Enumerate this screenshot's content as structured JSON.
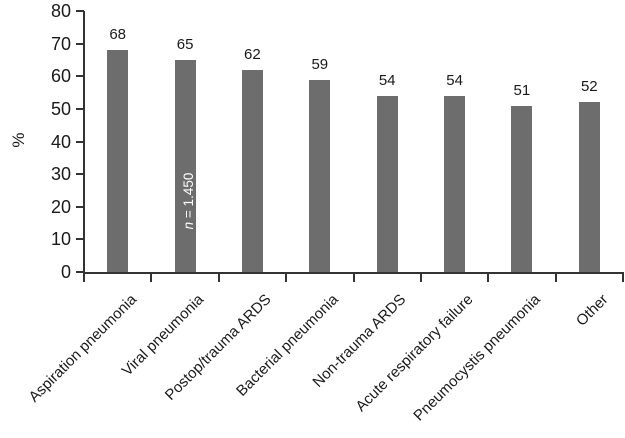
{
  "figure": {
    "background": "#ffffff",
    "bar_color": "#6d6d6d",
    "axis_color": "#333333",
    "text_color": "#1a1a1a",
    "annotation_text_color": "#ffffff"
  },
  "chart_data": {
    "type": "bar",
    "title": "",
    "xlabel": "",
    "ylabel": "%",
    "ylim": [
      0,
      80
    ],
    "ytick_step": 10,
    "yticks": [
      0,
      10,
      20,
      30,
      40,
      50,
      60,
      70,
      80
    ],
    "grid": false,
    "legend": null,
    "categories": [
      "Aspiration pneumonia",
      "Viral pneumonia",
      "Postop/trauma ARDS",
      "Bacterial pneumonia",
      "Non-trauma ARDS",
      "Acute respiratory failure",
      "Pneumocystis pneumonia",
      "Other"
    ],
    "values": [
      68,
      65,
      62,
      59,
      54,
      54,
      51,
      52
    ],
    "bar_value_labels": [
      "68",
      "65",
      "62",
      "59",
      "54",
      "54",
      "51",
      "52"
    ],
    "annotation": {
      "italic_part": "n",
      "text_part": " = 1.450",
      "full_text": "n = 1.450",
      "target_category": "Viral pneumonia",
      "orientation": "vertical"
    }
  }
}
